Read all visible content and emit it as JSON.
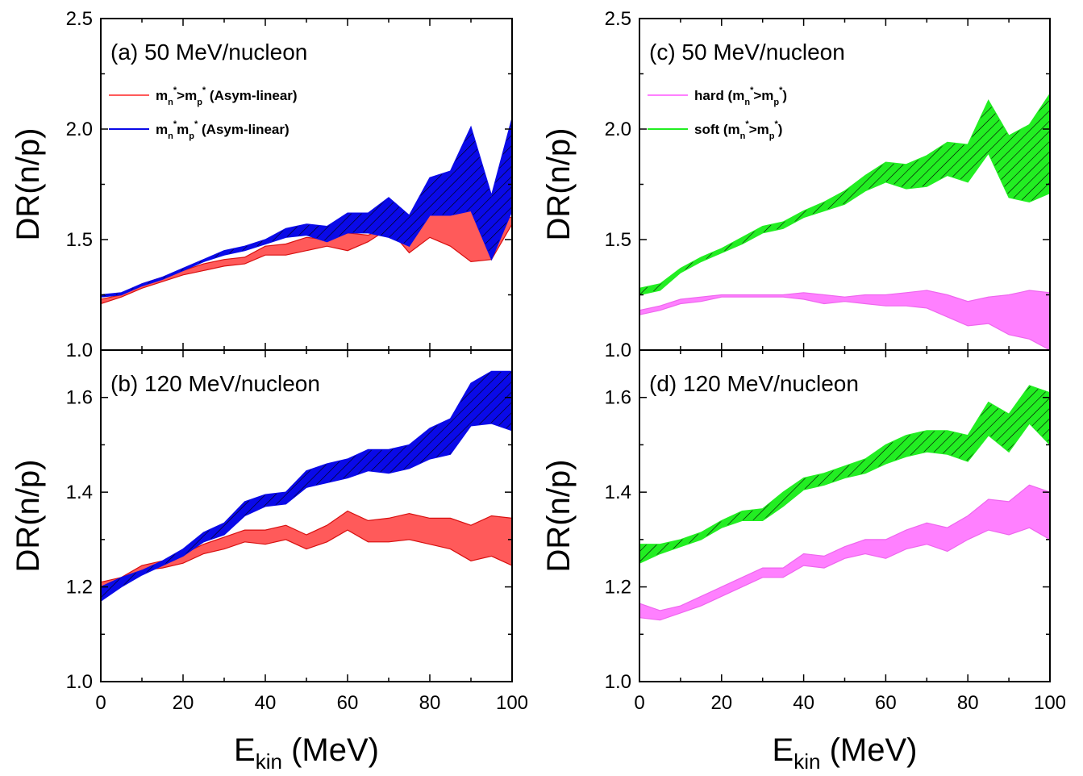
{
  "colors": {
    "red": "#ff5a5a",
    "red_edge": "#d81010",
    "blue": "#0a0ae8",
    "magenta": "#ff80ff",
    "magenta_edge": "#ee66ee",
    "green": "#22ee22"
  },
  "chart_data": [
    {
      "panel": "a",
      "type": "area",
      "title": "(a) 50 MeV/nucleon",
      "ylabel": "DR(n/p)",
      "xlabel": "",
      "xlim": [
        0,
        100
      ],
      "ylim": [
        1.0,
        2.5
      ],
      "yticks": [
        "1.0",
        "1.5",
        "2.0",
        "2.5"
      ],
      "x": [
        0,
        5,
        10,
        15,
        20,
        25,
        30,
        35,
        40,
        45,
        50,
        55,
        60,
        65,
        70,
        75,
        80,
        85,
        90,
        95,
        100
      ],
      "legend": {
        "position": "top-left"
      },
      "series": [
        {
          "name": "m<sub>n</sub><sup>*</sup>>m<sub>p</sub><sup>*</sup> (Asym-linear)",
          "legend_main": "m",
          "color": "red",
          "hatched": false,
          "upper": [
            1.23,
            1.25,
            1.3,
            1.33,
            1.36,
            1.39,
            1.41,
            1.42,
            1.47,
            1.48,
            1.51,
            1.5,
            1.53,
            1.52,
            1.56,
            1.5,
            1.61,
            1.61,
            1.64,
            1.61,
            1.6
          ],
          "lower": [
            1.21,
            1.24,
            1.28,
            1.31,
            1.34,
            1.36,
            1.38,
            1.39,
            1.43,
            1.43,
            1.45,
            1.47,
            1.45,
            1.49,
            1.55,
            1.44,
            1.51,
            1.47,
            1.4,
            1.41,
            1.57
          ]
        },
        {
          "name": "m<sub>n</sub><sup>*</sup><m<sub>p</sub><sup>*</sup> (Asym-linear)",
          "color": "blue",
          "hatched": true,
          "upper": [
            1.25,
            1.26,
            1.3,
            1.33,
            1.37,
            1.41,
            1.45,
            1.47,
            1.5,
            1.55,
            1.57,
            1.56,
            1.62,
            1.62,
            1.69,
            1.61,
            1.78,
            1.81,
            2.01,
            1.7,
            2.05
          ],
          "lower": [
            1.24,
            1.25,
            1.29,
            1.32,
            1.36,
            1.4,
            1.43,
            1.45,
            1.48,
            1.51,
            1.52,
            1.49,
            1.53,
            1.53,
            1.51,
            1.47,
            1.61,
            1.61,
            1.63,
            1.41,
            1.63
          ]
        }
      ]
    },
    {
      "panel": "b",
      "type": "area",
      "title": "(b) 120 MeV/nucleon",
      "ylabel": "DR(n/p)",
      "xlabel": "E_kin (MeV)",
      "xlim": [
        0,
        100
      ],
      "ylim": [
        1.0,
        1.7
      ],
      "xticks": [
        "0",
        "20",
        "40",
        "60",
        "80",
        "100"
      ],
      "yticks": [
        "1.0",
        "1.2",
        "1.4",
        "1.6"
      ],
      "x": [
        0,
        5,
        10,
        15,
        20,
        25,
        30,
        35,
        40,
        45,
        50,
        55,
        60,
        65,
        70,
        75,
        80,
        85,
        90,
        95,
        100
      ],
      "series": [
        {
          "color": "red",
          "hatched": false,
          "upper": [
            1.21,
            1.22,
            1.245,
            1.255,
            1.27,
            1.29,
            1.305,
            1.32,
            1.32,
            1.33,
            1.31,
            1.33,
            1.36,
            1.34,
            1.345,
            1.355,
            1.345,
            1.345,
            1.33,
            1.35,
            1.345
          ],
          "lower": [
            1.2,
            1.21,
            1.235,
            1.24,
            1.25,
            1.27,
            1.28,
            1.295,
            1.29,
            1.3,
            1.28,
            1.295,
            1.32,
            1.295,
            1.295,
            1.3,
            1.29,
            1.28,
            1.255,
            1.265,
            1.245
          ]
        },
        {
          "color": "blue",
          "hatched": true,
          "upper": [
            1.2,
            1.22,
            1.235,
            1.255,
            1.28,
            1.315,
            1.335,
            1.38,
            1.395,
            1.4,
            1.445,
            1.46,
            1.47,
            1.49,
            1.49,
            1.5,
            1.535,
            1.555,
            1.63,
            1.655,
            1.655
          ],
          "lower": [
            1.17,
            1.2,
            1.225,
            1.245,
            1.265,
            1.295,
            1.31,
            1.35,
            1.37,
            1.375,
            1.41,
            1.42,
            1.43,
            1.445,
            1.44,
            1.45,
            1.47,
            1.48,
            1.54,
            1.545,
            1.53
          ]
        }
      ]
    },
    {
      "panel": "c",
      "type": "area",
      "title": "(c) 50 MeV/nucleon",
      "ylabel": "DR(n/p)",
      "xlabel": "",
      "xlim": [
        0,
        100
      ],
      "ylim": [
        1.0,
        2.5
      ],
      "yticks": [
        "1.0",
        "1.5",
        "2.0",
        "2.5"
      ],
      "x": [
        0,
        5,
        10,
        15,
        20,
        25,
        30,
        35,
        40,
        45,
        50,
        55,
        60,
        65,
        70,
        75,
        80,
        85,
        90,
        95,
        100
      ],
      "legend": {
        "position": "top-left"
      },
      "series": [
        {
          "name": "hard (m<sub>n</sub><sup>*</sup>>m<sub>p</sub><sup>*</sup>)",
          "color": "magenta",
          "hatched": false,
          "upper": [
            1.18,
            1.2,
            1.23,
            1.24,
            1.25,
            1.25,
            1.25,
            1.25,
            1.26,
            1.25,
            1.24,
            1.25,
            1.25,
            1.26,
            1.27,
            1.25,
            1.22,
            1.24,
            1.25,
            1.27,
            1.26
          ],
          "lower": [
            1.16,
            1.18,
            1.21,
            1.22,
            1.24,
            1.24,
            1.24,
            1.24,
            1.23,
            1.21,
            1.22,
            1.21,
            1.2,
            1.2,
            1.19,
            1.15,
            1.11,
            1.12,
            1.07,
            1.05,
            1.0
          ]
        },
        {
          "name": "soft  (m<sub>n</sub><sup>*</sup>>m<sub>p</sub><sup>*</sup>)",
          "color": "green",
          "hatched": true,
          "upper": [
            1.28,
            1.3,
            1.37,
            1.42,
            1.46,
            1.51,
            1.56,
            1.58,
            1.63,
            1.67,
            1.72,
            1.79,
            1.85,
            1.84,
            1.88,
            1.94,
            1.93,
            2.13,
            1.97,
            2.02,
            2.16
          ],
          "lower": [
            1.25,
            1.27,
            1.35,
            1.4,
            1.44,
            1.48,
            1.53,
            1.55,
            1.6,
            1.63,
            1.66,
            1.72,
            1.76,
            1.73,
            1.74,
            1.79,
            1.76,
            1.89,
            1.69,
            1.67,
            1.71
          ]
        }
      ]
    },
    {
      "panel": "d",
      "type": "area",
      "title": "(d) 120 MeV/nucleon",
      "ylabel": "DR(n/p)",
      "xlabel": "E_kin (MeV)",
      "xlim": [
        0,
        100
      ],
      "ylim": [
        1.0,
        1.7
      ],
      "xticks": [
        "0",
        "20",
        "40",
        "60",
        "80",
        "100"
      ],
      "yticks": [
        "1.0",
        "1.2",
        "1.4",
        "1.6"
      ],
      "x": [
        0,
        5,
        10,
        15,
        20,
        25,
        30,
        35,
        40,
        45,
        50,
        55,
        60,
        65,
        70,
        75,
        80,
        85,
        90,
        95,
        100
      ],
      "series": [
        {
          "color": "magenta",
          "hatched": false,
          "upper": [
            1.165,
            1.15,
            1.16,
            1.18,
            1.2,
            1.22,
            1.24,
            1.24,
            1.27,
            1.265,
            1.285,
            1.3,
            1.3,
            1.32,
            1.335,
            1.325,
            1.35,
            1.385,
            1.38,
            1.415,
            1.4
          ],
          "lower": [
            1.135,
            1.13,
            1.145,
            1.16,
            1.18,
            1.2,
            1.22,
            1.22,
            1.245,
            1.24,
            1.26,
            1.27,
            1.26,
            1.28,
            1.29,
            1.275,
            1.3,
            1.32,
            1.31,
            1.325,
            1.3
          ]
        },
        {
          "color": "green",
          "hatched": true,
          "upper": [
            1.29,
            1.29,
            1.3,
            1.315,
            1.34,
            1.36,
            1.365,
            1.4,
            1.43,
            1.44,
            1.455,
            1.47,
            1.5,
            1.52,
            1.53,
            1.53,
            1.52,
            1.59,
            1.565,
            1.625,
            1.61
          ],
          "lower": [
            1.25,
            1.27,
            1.285,
            1.3,
            1.325,
            1.34,
            1.34,
            1.37,
            1.405,
            1.415,
            1.43,
            1.44,
            1.46,
            1.475,
            1.485,
            1.48,
            1.465,
            1.52,
            1.485,
            1.545,
            1.5
          ]
        }
      ]
    }
  ]
}
